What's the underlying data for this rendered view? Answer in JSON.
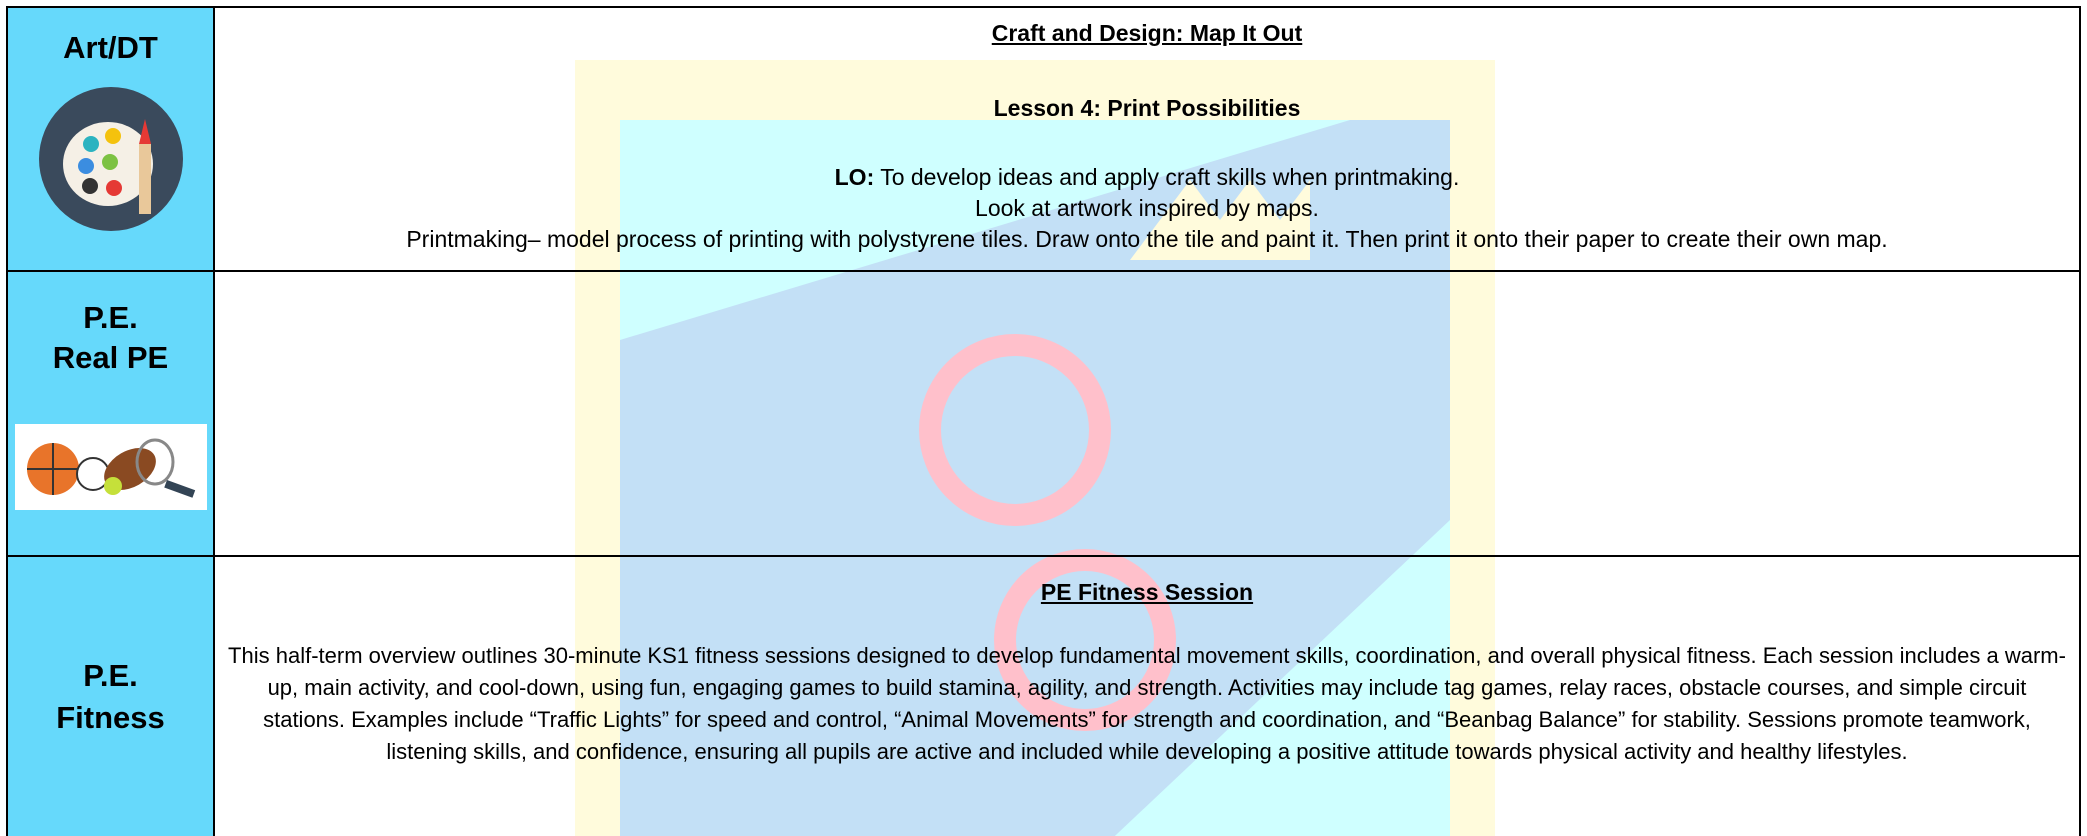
{
  "rows": [
    {
      "subject": [
        "Art/DT"
      ],
      "heading": "Craft and Design: Map It Out",
      "lesson": "Lesson 4: Print Possibilities",
      "lo_label": "LO:",
      "lo_text": " To develop ideas and apply craft skills when printmaking.",
      "lines": [
        "Look at artwork inspired by maps.",
        "Printmaking– model process of printing with polystyrene tiles. Draw onto the tile and paint it. Then print it onto their paper to create their own map."
      ]
    },
    {
      "subject": [
        "P.E.",
        "Real PE"
      ]
    },
    {
      "subject": [
        "P.E.",
        "Fitness"
      ],
      "heading": "PE Fitness Session",
      "paragraph": "This half-term overview outlines 30-minute KS1 fitness sessions designed to develop fundamental movement skills, coordination, and overall physical fitness. Each session includes a warm-up, main activity, and cool-down, using fun, engaging games to build stamina, agility, and strength. Activities may include tag games, relay races, obstacle courses, and simple circuit stations. Examples include “Traffic Lights” for speed and control, “Animal Movements” for strength and coordination, and “Beanbag Balance” for stability. Sessions promote teamwork, listening skills, and confidence, ensuring all pupils are active and included while developing a positive attitude towards physical activity and healthy lifestyles."
    }
  ]
}
